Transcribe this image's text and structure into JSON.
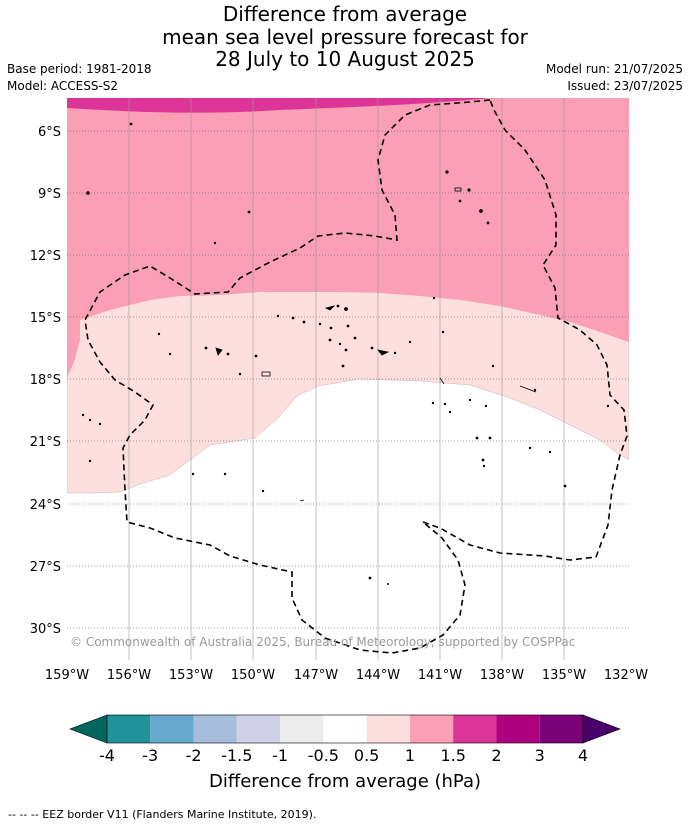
{
  "header": {
    "title_lines": [
      "Difference from average",
      "mean sea level pressure forecast for",
      "28 July to 10 August 2025"
    ],
    "base_period": "Base period: 1981-2018",
    "model": "Model: ACCESS-S2",
    "model_run": "Model run: 21/07/2025",
    "issued": "Issued: 23/07/2025"
  },
  "map": {
    "lat_labels": [
      "6°S",
      "9°S",
      "12°S",
      "15°S",
      "18°S",
      "21°S",
      "24°S",
      "27°S",
      "30°S"
    ],
    "lon_labels": [
      "159°W",
      "156°W",
      "153°W",
      "150°W",
      "147°W",
      "144°W",
      "141°W",
      "138°W",
      "135°W",
      "132°W"
    ],
    "copyright": "© Commonwealth of Australia 2025, Bureau of Meteorology, supported by COSPPac",
    "grid": true,
    "fill_colors": {
      "pink_1_5_to_2": "#dd3497",
      "pink_1_to_1_5": "#fa9fb5",
      "pink_0_5_to_1": "#fde0dd",
      "neutral": "#ffffff"
    }
  },
  "colorbar": {
    "labels": [
      "-4",
      "-3",
      "-2",
      "-1.5",
      "-1",
      "-0.5",
      "0.5",
      "1",
      "1.5",
      "2",
      "3",
      "4"
    ],
    "colors": [
      "#01665e",
      "#1f9399",
      "#67a9cf",
      "#a6bddb",
      "#d0d1e6",
      "#ececec",
      "#ffffff",
      "#fde0dd",
      "#fa9fb5",
      "#dd3497",
      "#ae017e",
      "#7a0177",
      "#49006a"
    ],
    "title": "Difference from average (hPa)"
  },
  "footer": {
    "legend_text": "--  --  -- EEZ border V11 (Flanders Marine Institute, 2019)."
  }
}
